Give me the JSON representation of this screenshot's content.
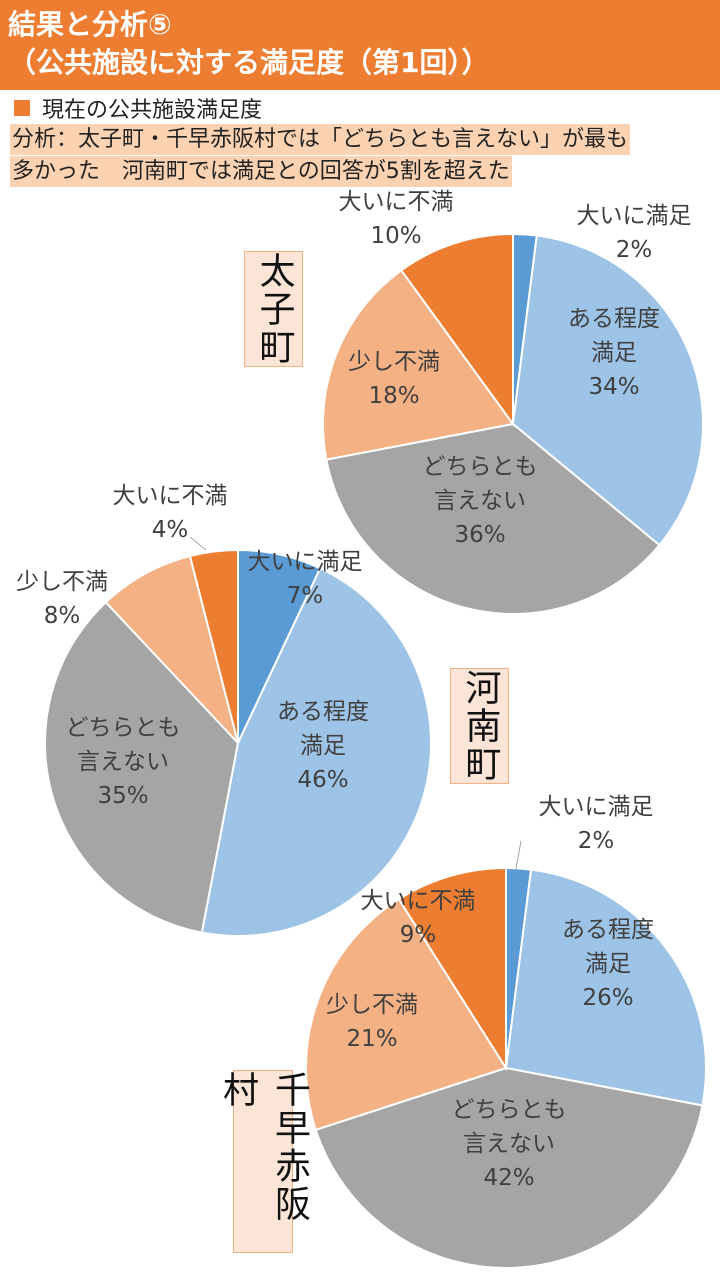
{
  "header": {
    "line1": "結果と分析⑤",
    "line2": "（公共施設に対する満足度（第1回））"
  },
  "legend": {
    "label": "現在の公共施設満足度",
    "color": "#ED7D31"
  },
  "analysis": {
    "line1": "分析：太子町・千早赤阪村では「どちらとも言えない」が最も",
    "line2": "多かった　河南町では満足との回答が5割を超えた"
  },
  "categories": [
    "大いに満足",
    "ある程度満足",
    "どちらとも言えない",
    "少し不満",
    "大いに不満"
  ],
  "colors": {
    "大いに満足": "#5B9BD5",
    "ある程度満足": "#9DC3E6",
    "どちらとも言えない": "#A5A5A5",
    "少し不満": "#F4B183",
    "大いに不満": "#ED7D31"
  },
  "chart_data": [
    {
      "type": "pie",
      "title": "太子町",
      "categories": [
        "大いに満足",
        "ある程度満足",
        "どちらとも言えない",
        "少し不満",
        "大いに不満"
      ],
      "labels": [
        [
          "大いに満足"
        ],
        [
          "ある程度",
          "満足"
        ],
        [
          "どちらとも",
          "言えない"
        ],
        [
          "少し不満"
        ],
        [
          "大いに不満"
        ]
      ],
      "values": [
        2,
        34,
        36,
        18,
        10
      ]
    },
    {
      "type": "pie",
      "title": "河南町",
      "categories": [
        "大いに満足",
        "ある程度満足",
        "どちらとも言えない",
        "少し不満",
        "大いに不満"
      ],
      "labels": [
        [
          "大いに満足"
        ],
        [
          "ある程度",
          "満足"
        ],
        [
          "どちらとも",
          "言えない"
        ],
        [
          "少し不満"
        ],
        [
          "大いに不満"
        ]
      ],
      "values": [
        7,
        46,
        35,
        8,
        4
      ]
    },
    {
      "type": "pie",
      "title": "千早赤阪村",
      "categories": [
        "大いに満足",
        "ある程度満足",
        "どちらとも言えない",
        "少し不満",
        "大いに不満"
      ],
      "labels": [
        [
          "大いに満足"
        ],
        [
          "ある程度",
          "満足"
        ],
        [
          "どちらとも",
          "言えない"
        ],
        [
          "少し不満"
        ],
        [
          "大いに不満"
        ]
      ],
      "values": [
        2,
        26,
        42,
        21,
        9
      ]
    }
  ]
}
